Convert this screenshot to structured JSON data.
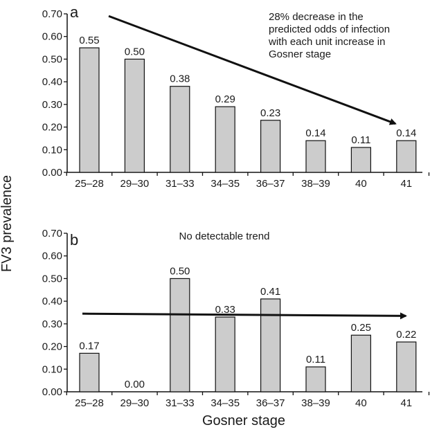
{
  "chart_data": [
    {
      "type": "bar",
      "panel_label": "a",
      "categories": [
        "25–28",
        "29–30",
        "31–33",
        "34–35",
        "36–37",
        "38–39",
        "40",
        "41"
      ],
      "values": [
        0.55,
        0.5,
        0.38,
        0.29,
        0.23,
        0.14,
        0.11,
        0.14
      ],
      "value_labels": [
        "0.55",
        "0.50",
        "0.38",
        "0.29",
        "0.23",
        "0.14",
        "0.11",
        "0.14"
      ],
      "ylim": [
        0,
        0.7
      ],
      "yticks": [
        "0.00",
        "0.10",
        "0.20",
        "0.30",
        "0.40",
        "0.50",
        "0.60",
        "0.70"
      ],
      "annotation": [
        "28% decrease in the",
        "predicted odds of infection",
        "with each unit increase in",
        "Gosner stage"
      ],
      "trend": {
        "from_category": 0,
        "from_value": 0.69,
        "to_category": 7,
        "to_value": 0.215
      },
      "bar_color": "#cccccc",
      "grid": false
    },
    {
      "type": "bar",
      "panel_label": "b",
      "categories": [
        "25–28",
        "29–30",
        "31–33",
        "34–35",
        "36–37",
        "38–39",
        "40",
        "41"
      ],
      "values": [
        0.17,
        0.0,
        0.5,
        0.33,
        0.41,
        0.11,
        0.25,
        0.22
      ],
      "value_labels": [
        "0.17",
        "0.00",
        "0.50",
        "0.33",
        "0.41",
        "0.11",
        "0.25",
        "0.22"
      ],
      "ylim": [
        0,
        0.7
      ],
      "yticks": [
        "0.00",
        "0.10",
        "0.20",
        "0.30",
        "0.40",
        "0.50",
        "0.60",
        "0.70"
      ],
      "annotation": [
        "No detectable trend"
      ],
      "trend": {
        "from_category": 0,
        "from_value": 0.345,
        "to_category": 7,
        "to_value": 0.335
      },
      "bar_color": "#cccccc",
      "grid": false
    }
  ],
  "ylabel": "FV3 prevalence",
  "xlabel": "Gosner stage"
}
